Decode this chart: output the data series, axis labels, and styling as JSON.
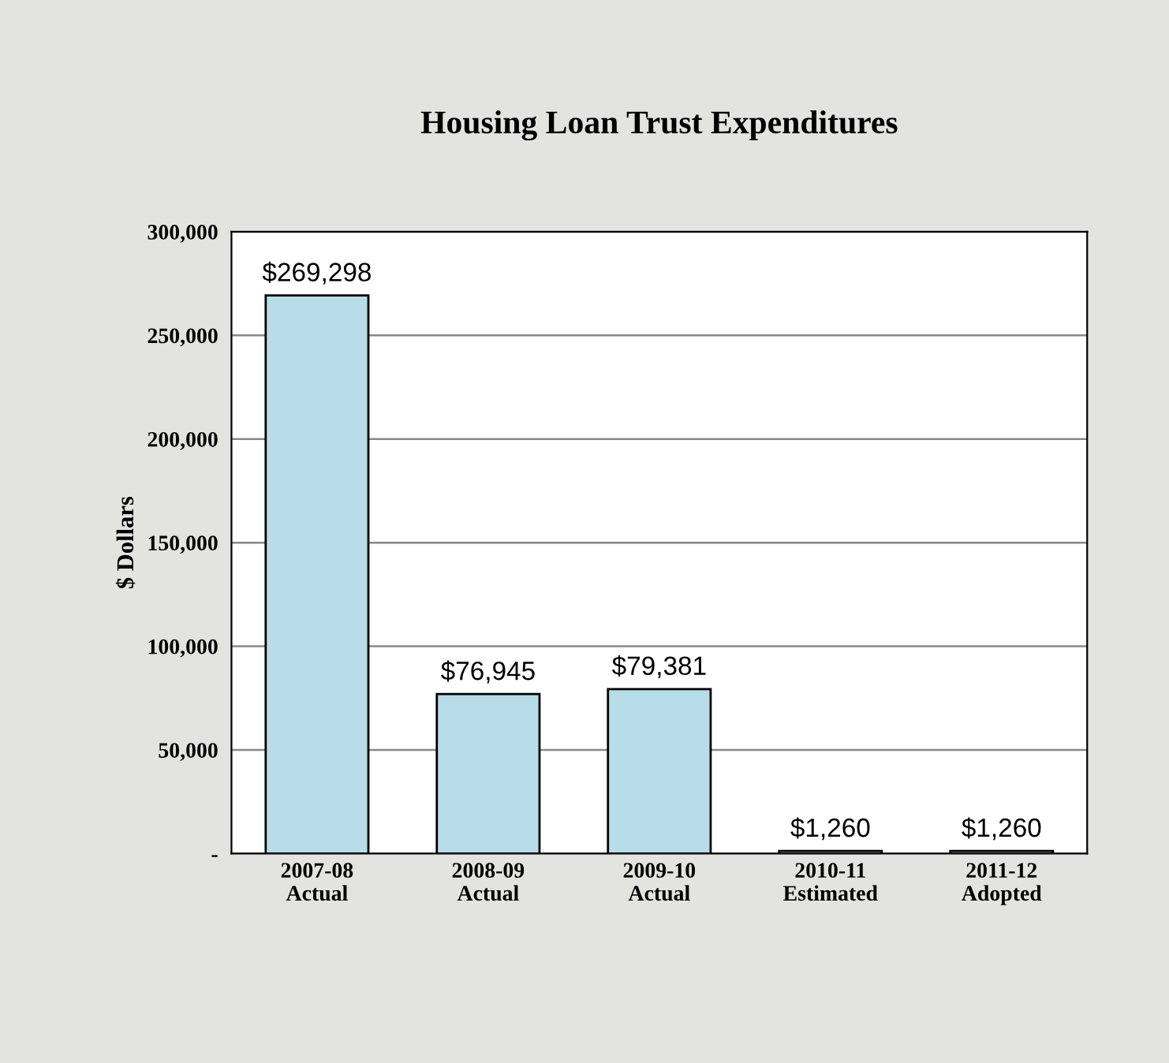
{
  "chart_data": {
    "type": "bar",
    "title": "Housing Loan Trust Expenditures",
    "ylabel": "$ Dollars",
    "categories": [
      "2007-08\nActual",
      "2008-09\nActual",
      "2009-10\nActual",
      "2010-11\nEstimated",
      "2011-12\nAdopted"
    ],
    "values": [
      269298,
      76945,
      79381,
      1260,
      1260
    ],
    "value_labels": [
      "$269,298",
      "$76,945",
      "$79,381",
      "$1,260",
      "$1,260"
    ],
    "color": "#b7dde8",
    "ylim": [
      0,
      300000
    ],
    "yticks": [
      {
        "value": 0,
        "label": "-"
      },
      {
        "value": 50000,
        "label": "50,000"
      },
      {
        "value": 100000,
        "label": "100,000"
      },
      {
        "value": 150000,
        "label": "150,000"
      },
      {
        "value": 200000,
        "label": "200,000"
      },
      {
        "value": 250000,
        "label": "250,000"
      },
      {
        "value": 300000,
        "label": "300,000"
      }
    ],
    "grid": "y",
    "legend": false
  }
}
